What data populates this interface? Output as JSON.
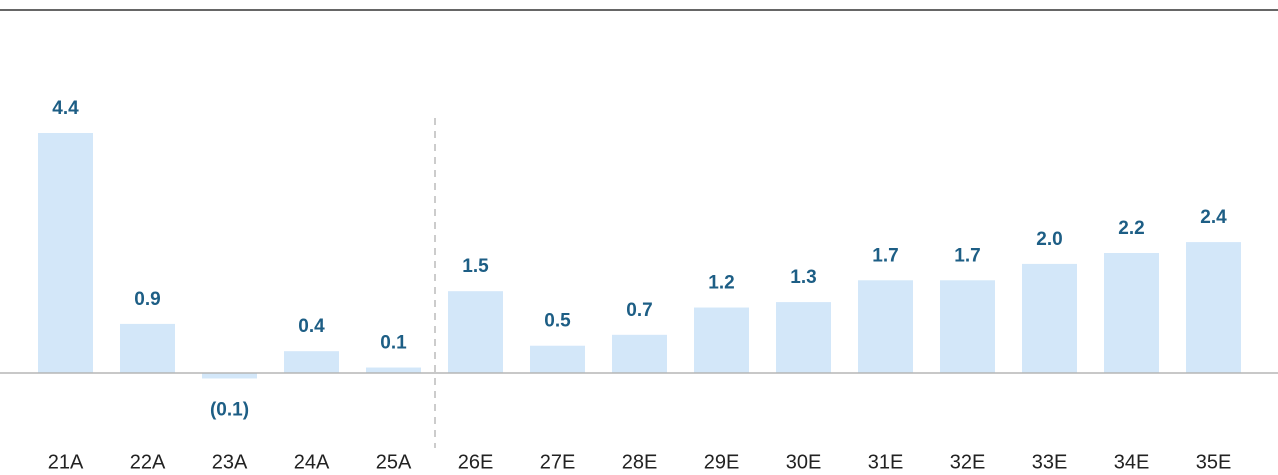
{
  "chart_data": {
    "type": "bar",
    "categories": [
      "21A",
      "22A",
      "23A",
      "24A",
      "25A",
      "26E",
      "27E",
      "28E",
      "29E",
      "30E",
      "31E",
      "32E",
      "33E",
      "34E",
      "35E"
    ],
    "values": [
      4.4,
      0.9,
      -0.1,
      0.4,
      0.1,
      1.5,
      0.5,
      0.7,
      1.2,
      1.3,
      1.7,
      1.7,
      2.0,
      2.2,
      2.4
    ],
    "value_labels": [
      "4.4",
      "0.9",
      "(0.1)",
      "0.4",
      "0.1",
      "1.5",
      "0.5",
      "0.7",
      "1.2",
      "1.3",
      "1.7",
      "1.7",
      "2.0",
      "2.2",
      "2.4"
    ],
    "color": "#d3e7f9"
  }
}
